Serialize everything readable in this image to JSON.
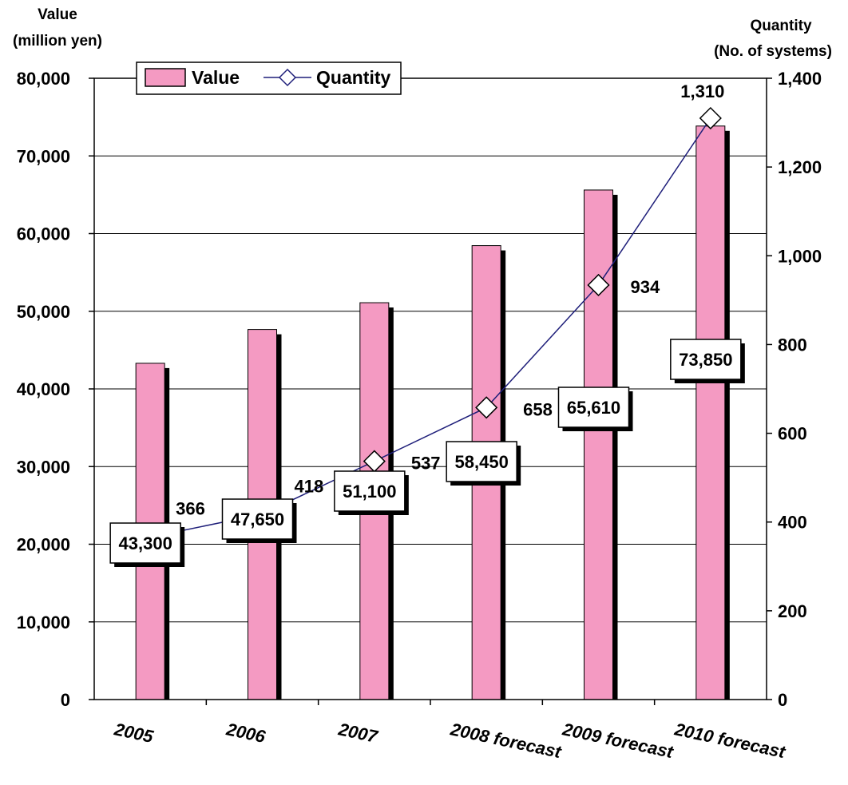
{
  "chart_data": {
    "type": "bar",
    "categories": [
      "2005",
      "2006",
      "2007",
      "2008 forecast",
      "2009 forecast",
      "2010 forecast"
    ],
    "series": [
      {
        "name": "Value",
        "type": "bar",
        "axis": "left",
        "values": [
          43300,
          47650,
          51100,
          58450,
          65610,
          73850
        ],
        "labels": [
          "43,300",
          "47,650",
          "51,100",
          "58,450",
          "65,610",
          "73,850"
        ],
        "color": "#f49ac2"
      },
      {
        "name": "Quantity",
        "type": "line",
        "axis": "right",
        "marker": "diamond",
        "values": [
          366,
          418,
          537,
          658,
          934,
          1310
        ],
        "labels": [
          "366",
          "418",
          "537",
          "658",
          "934",
          "1,310"
        ],
        "color": "#1f1f7a"
      }
    ],
    "y_left": {
      "label_lines": [
        "Value",
        "(million yen)"
      ],
      "range": [
        0,
        80000
      ],
      "ticks": [
        "0",
        "10,000",
        "20,000",
        "30,000",
        "40,000",
        "50,000",
        "60,000",
        "70,000",
        "80,000"
      ]
    },
    "y_right": {
      "label_lines": [
        "Quantity",
        "(No. of systems)"
      ],
      "range": [
        0,
        1400
      ],
      "ticks": [
        "0",
        "200",
        "400",
        "600",
        "800",
        "1,000",
        "1,200",
        "1,400"
      ]
    },
    "grid": "horizontal",
    "legend": "top-left"
  }
}
